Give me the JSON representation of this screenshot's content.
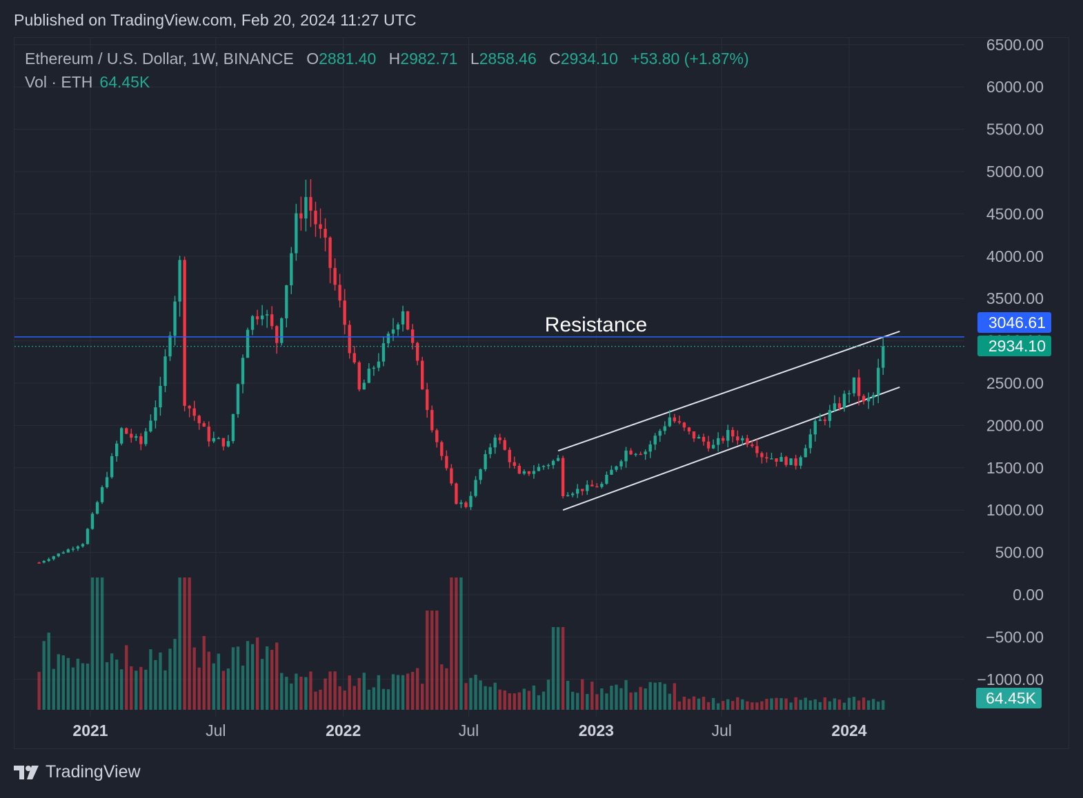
{
  "header": {
    "published": "Published on TradingView.com, Feb 20, 2024 11:27 UTC"
  },
  "legend": {
    "symbol": "Ethereum / U.S. Dollar, 1W, BINANCE",
    "o_label": "O",
    "o": "2881.40",
    "h_label": "H",
    "h": "2982.71",
    "l_label": "L",
    "l": "2858.46",
    "c_label": "C",
    "c": "2934.10",
    "change": "+53.80 (+1.87%)",
    "vol_label": "Vol · ETH",
    "vol": "64.45K"
  },
  "badges": {
    "resistance_price": "3046.61",
    "last_price": "2934.10",
    "last_volume": "64.45K"
  },
  "footer": {
    "brand": "TradingView"
  },
  "colors": {
    "up": "#22ab94",
    "down": "#f23645",
    "resistance": "#2962ff",
    "background": "#1e222d",
    "grid": "#2a2e39"
  },
  "chart_data": {
    "type": "candlestick",
    "title": "Ethereum / U.S. Dollar, 1W, BINANCE",
    "interval": "1W",
    "y_ticks": [
      "6500.00",
      "6000.00",
      "5500.00",
      "5000.00",
      "4500.00",
      "4000.00",
      "3500.00",
      "3000.00",
      "2500.00",
      "2000.00",
      "1500.00",
      "1000.00",
      "500.00",
      "0.00",
      "−500.00",
      "−1000.00"
    ],
    "y_tick_values": [
      6500,
      6000,
      5500,
      5000,
      4500,
      4000,
      3500,
      3000,
      2500,
      2000,
      1500,
      1000,
      500,
      0,
      -500,
      -1000
    ],
    "x_labels": [
      {
        "label": "2021",
        "date": "2021-01-01",
        "bold": true
      },
      {
        "label": "Jul",
        "date": "2021-07-01",
        "bold": false
      },
      {
        "label": "2022",
        "date": "2022-01-01",
        "bold": true
      },
      {
        "label": "Jul",
        "date": "2022-07-01",
        "bold": false
      },
      {
        "label": "2023",
        "date": "2023-01-01",
        "bold": true
      },
      {
        "label": "Jul",
        "date": "2023-07-01",
        "bold": false
      },
      {
        "label": "2024",
        "date": "2024-01-01",
        "bold": true
      }
    ],
    "x_range": [
      "2020-10-15",
      "2024-06-20"
    ],
    "resistance": {
      "value": 3046.61,
      "label": "Resistance"
    },
    "last_price": 2934.1,
    "channel": {
      "upper": [
        [
          "2022-11-07",
          1700
        ],
        [
          "2024-03-04",
          3080
        ]
      ],
      "lower": [
        [
          "2022-11-14",
          1000
        ],
        [
          "2024-03-04",
          2420
        ]
      ]
    },
    "anchors": [
      [
        "2020-10-19",
        380
      ],
      [
        "2020-12-21",
        610
      ],
      [
        "2021-01-18",
        1250
      ],
      [
        "2021-02-15",
        1950
      ],
      [
        "2021-03-15",
        1780
      ],
      [
        "2021-04-12",
        2400
      ],
      [
        "2021-05-10",
        3900
      ],
      [
        "2021-05-17",
        2300
      ],
      [
        "2021-06-21",
        1850
      ],
      [
        "2021-07-19",
        1780
      ],
      [
        "2021-08-16",
        3200
      ],
      [
        "2021-09-06",
        3400
      ],
      [
        "2021-09-27",
        3000
      ],
      [
        "2021-10-25",
        4400
      ],
      [
        "2021-11-08",
        4700
      ],
      [
        "2021-12-06",
        4100
      ],
      [
        "2022-01-03",
        3200
      ],
      [
        "2022-01-24",
        2400
      ],
      [
        "2022-02-28",
        2900
      ],
      [
        "2022-03-28",
        3400
      ],
      [
        "2022-05-09",
        2000
      ],
      [
        "2022-06-13",
        1100
      ],
      [
        "2022-06-27",
        1050
      ],
      [
        "2022-08-08",
        1900
      ],
      [
        "2022-09-12",
        1400
      ],
      [
        "2022-10-24",
        1550
      ],
      [
        "2022-11-07",
        1600
      ],
      [
        "2022-11-14",
        1200
      ],
      [
        "2023-01-09",
        1300
      ],
      [
        "2023-02-13",
        1700
      ],
      [
        "2023-03-13",
        1700
      ],
      [
        "2023-04-17",
        2100
      ],
      [
        "2023-05-15",
        1900
      ],
      [
        "2023-06-19",
        1750
      ],
      [
        "2023-07-10",
        1900
      ],
      [
        "2023-08-14",
        1800
      ],
      [
        "2023-08-28",
        1650
      ],
      [
        "2023-10-16",
        1550
      ],
      [
        "2023-11-13",
        2000
      ],
      [
        "2023-12-18",
        2250
      ],
      [
        "2024-01-08",
        2500
      ],
      [
        "2024-01-22",
        2250
      ],
      [
        "2024-02-05",
        2350
      ],
      [
        "2024-02-19",
        2934.1
      ]
    ],
    "volume_spikes": [
      [
        "2021-01-11",
        1.6
      ],
      [
        "2021-05-17",
        1.6
      ],
      [
        "2022-05-09",
        1.2
      ],
      [
        "2022-06-13",
        1.6
      ],
      [
        "2022-11-07",
        1.0
      ]
    ]
  }
}
